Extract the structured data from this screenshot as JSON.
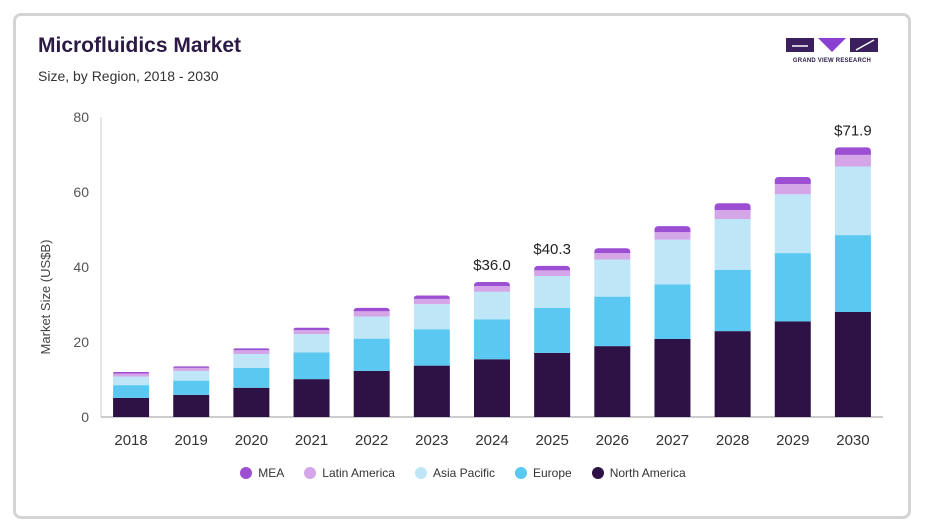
{
  "header": {
    "title": "Microfluidics Market",
    "subtitle": "Size, by Region, 2018 - 2030"
  },
  "logo": {
    "text": "GRAND VIEW RESEARCH",
    "colors": {
      "dark": "#3b1f5e",
      "accent": "#8a3fd1"
    }
  },
  "chart_data": {
    "type": "bar",
    "stacked": true,
    "title": "Microfluidics Market",
    "subtitle": "Size, by Region, 2018 - 2030",
    "xlabel": "",
    "ylabel": "Market Size (US$B)",
    "ylim": [
      0,
      80
    ],
    "yticks": [
      0,
      20,
      40,
      60,
      80
    ],
    "grid": false,
    "legend_position": "bottom",
    "categories": [
      "2018",
      "2019",
      "2020",
      "2021",
      "2022",
      "2023",
      "2024",
      "2025",
      "2026",
      "2027",
      "2028",
      "2029",
      "2030"
    ],
    "series": [
      {
        "name": "North America",
        "color": "#2e1245",
        "values": [
          5.1,
          5.9,
          7.8,
          10.1,
          12.3,
          13.7,
          15.4,
          17.1,
          18.9,
          20.8,
          22.9,
          25.5,
          28.0
        ]
      },
      {
        "name": "Europe",
        "color": "#5bc8f2",
        "values": [
          3.4,
          3.8,
          5.3,
          7.1,
          8.6,
          9.7,
          10.6,
          12.0,
          13.2,
          14.6,
          16.3,
          18.2,
          20.5
        ]
      },
      {
        "name": "Asia Pacific",
        "color": "#bfe6f7",
        "values": [
          2.3,
          2.6,
          3.7,
          4.9,
          5.9,
          6.7,
          7.4,
          8.5,
          9.9,
          11.9,
          13.6,
          15.7,
          18.3
        ]
      },
      {
        "name": "Latin America",
        "color": "#d4a6e8",
        "values": [
          0.8,
          0.8,
          1.0,
          1.1,
          1.4,
          1.4,
          1.5,
          1.5,
          1.7,
          2.0,
          2.4,
          2.7,
          3.1
        ]
      },
      {
        "name": "MEA",
        "color": "#9c4fd2",
        "values": [
          0.4,
          0.4,
          0.5,
          0.6,
          0.9,
          0.9,
          1.1,
          1.2,
          1.3,
          1.6,
          1.8,
          1.9,
          2.0
        ]
      }
    ],
    "annotations": [
      {
        "category": "2024",
        "label": "$36.0"
      },
      {
        "category": "2025",
        "label": "$40.3"
      },
      {
        "category": "2030",
        "label": "$71.9"
      }
    ],
    "legend_order": [
      "MEA",
      "Latin America",
      "Asia Pacific",
      "Europe",
      "North America"
    ]
  }
}
